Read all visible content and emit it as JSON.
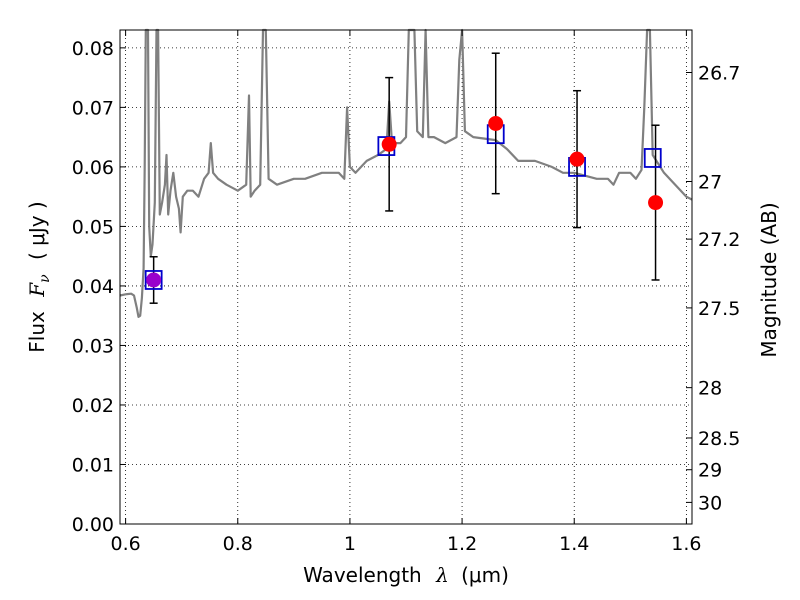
{
  "chart_data": {
    "type": "scatter",
    "xlabel": {
      "text": "Wavelength",
      "symbol": "λ",
      "unit": "(μm)"
    },
    "ylabel": {
      "text": "Flux",
      "symbol": "F",
      "subscript": "ν",
      "unit": "( μJy )"
    },
    "y2label": "Magnitude (AB)",
    "xlim": [
      0.59,
      1.61
    ],
    "ylim": [
      0.0,
      0.083
    ],
    "x_ticks": [
      {
        "value": 0.6,
        "label": "0.6"
      },
      {
        "value": 0.8,
        "label": "0.8"
      },
      {
        "value": 1.0,
        "label": "1"
      },
      {
        "value": 1.2,
        "label": "1.2"
      },
      {
        "value": 1.4,
        "label": "1.4"
      },
      {
        "value": 1.6,
        "label": "1.6"
      }
    ],
    "y_ticks": [
      {
        "value": 0.0,
        "label": "0.00"
      },
      {
        "value": 0.01,
        "label": "0.01"
      },
      {
        "value": 0.02,
        "label": "0.02"
      },
      {
        "value": 0.03,
        "label": "0.03"
      },
      {
        "value": 0.04,
        "label": "0.04"
      },
      {
        "value": 0.05,
        "label": "0.05"
      },
      {
        "value": 0.06,
        "label": "0.06"
      },
      {
        "value": 0.07,
        "label": "0.07"
      },
      {
        "value": 0.08,
        "label": "0.08"
      }
    ],
    "y2_ticks": [
      {
        "mag": 26.7,
        "label": "26.7"
      },
      {
        "mag": 27.0,
        "label": "27"
      },
      {
        "mag": 27.2,
        "label": "27.2"
      },
      {
        "mag": 27.5,
        "label": "27.5"
      },
      {
        "mag": 28.0,
        "label": "28"
      },
      {
        "mag": 28.5,
        "label": "28.5"
      },
      {
        "mag": 29.0,
        "label": "29"
      },
      {
        "mag": 30.0,
        "label": "30"
      }
    ],
    "grid": true,
    "grid_style": "dotted",
    "series": [
      {
        "kind": "line",
        "color": "#808080",
        "points": [
          [
            0.59,
            0.0384
          ],
          [
            0.6,
            0.0386
          ],
          [
            0.61,
            0.0387
          ],
          [
            0.615,
            0.0384
          ],
          [
            0.62,
            0.0363
          ],
          [
            0.623,
            0.0348
          ],
          [
            0.626,
            0.035
          ],
          [
            0.629,
            0.038
          ],
          [
            0.632,
            0.043
          ],
          [
            0.634,
            0.06
          ],
          [
            0.636,
            0.083
          ],
          [
            0.64,
            0.083
          ],
          [
            0.642,
            0.05
          ],
          [
            0.645,
            0.045
          ],
          [
            0.648,
            0.047
          ],
          [
            0.652,
            0.054
          ],
          [
            0.655,
            0.083
          ],
          [
            0.658,
            0.083
          ],
          [
            0.661,
            0.052
          ],
          [
            0.665,
            0.054
          ],
          [
            0.67,
            0.057
          ],
          [
            0.673,
            0.062
          ],
          [
            0.676,
            0.052
          ],
          [
            0.68,
            0.056
          ],
          [
            0.685,
            0.059
          ],
          [
            0.69,
            0.055
          ],
          [
            0.695,
            0.053
          ],
          [
            0.698,
            0.049
          ],
          [
            0.702,
            0.055
          ],
          [
            0.71,
            0.056
          ],
          [
            0.72,
            0.056
          ],
          [
            0.73,
            0.055
          ],
          [
            0.74,
            0.058
          ],
          [
            0.748,
            0.059
          ],
          [
            0.752,
            0.064
          ],
          [
            0.756,
            0.059
          ],
          [
            0.765,
            0.058
          ],
          [
            0.78,
            0.057
          ],
          [
            0.8,
            0.056
          ],
          [
            0.815,
            0.057
          ],
          [
            0.82,
            0.072
          ],
          [
            0.823,
            0.055
          ],
          [
            0.83,
            0.056
          ],
          [
            0.84,
            0.057
          ],
          [
            0.845,
            0.083
          ],
          [
            0.85,
            0.083
          ],
          [
            0.855,
            0.058
          ],
          [
            0.87,
            0.057
          ],
          [
            0.9,
            0.058
          ],
          [
            0.92,
            0.058
          ],
          [
            0.95,
            0.059
          ],
          [
            0.98,
            0.059
          ],
          [
            0.99,
            0.058
          ],
          [
            0.995,
            0.07
          ],
          [
            1.0,
            0.06
          ],
          [
            1.01,
            0.059
          ],
          [
            1.03,
            0.061
          ],
          [
            1.05,
            0.062
          ],
          [
            1.065,
            0.063
          ],
          [
            1.07,
            0.071
          ],
          [
            1.075,
            0.064
          ],
          [
            1.09,
            0.064
          ],
          [
            1.1,
            0.065
          ],
          [
            1.105,
            0.083
          ],
          [
            1.115,
            0.083
          ],
          [
            1.12,
            0.066
          ],
          [
            1.13,
            0.065
          ],
          [
            1.135,
            0.083
          ],
          [
            1.14,
            0.065
          ],
          [
            1.15,
            0.065
          ],
          [
            1.17,
            0.064
          ],
          [
            1.19,
            0.065
          ],
          [
            1.195,
            0.078
          ],
          [
            1.2,
            0.083
          ],
          [
            1.205,
            0.066
          ],
          [
            1.22,
            0.065
          ],
          [
            1.26,
            0.0645
          ],
          [
            1.28,
            0.063
          ],
          [
            1.3,
            0.061
          ],
          [
            1.33,
            0.061
          ],
          [
            1.36,
            0.06
          ],
          [
            1.38,
            0.059
          ],
          [
            1.4,
            0.059
          ],
          [
            1.42,
            0.0585
          ],
          [
            1.44,
            0.058
          ],
          [
            1.46,
            0.058
          ],
          [
            1.47,
            0.057
          ],
          [
            1.48,
            0.059
          ],
          [
            1.5,
            0.059
          ],
          [
            1.51,
            0.058
          ],
          [
            1.52,
            0.0595
          ],
          [
            1.525,
            0.07
          ],
          [
            1.53,
            0.083
          ],
          [
            1.535,
            0.083
          ],
          [
            1.54,
            0.062
          ],
          [
            1.56,
            0.059
          ],
          [
            1.58,
            0.057
          ],
          [
            1.6,
            0.055
          ],
          [
            1.61,
            0.0545
          ]
        ]
      },
      {
        "kind": "open-square",
        "color": "#0000cc",
        "points": [
          [
            0.65,
            0.041
          ],
          [
            1.065,
            0.0635
          ],
          [
            1.26,
            0.0655
          ],
          [
            1.405,
            0.06
          ],
          [
            1.54,
            0.0615
          ]
        ]
      },
      {
        "kind": "filled-circle-errorbar",
        "color": "#ff0000",
        "points": [
          {
            "x": 0.65,
            "y": 0.041,
            "yerr": 0.0039,
            "color": "#9900cc"
          },
          {
            "x": 1.07,
            "y": 0.0638,
            "yerr": 0.0112
          },
          {
            "x": 1.26,
            "y": 0.0673,
            "yerr": 0.0118
          },
          {
            "x": 1.405,
            "y": 0.0613,
            "yerr": 0.0115
          },
          {
            "x": 1.545,
            "y": 0.054,
            "yerr": 0.013
          }
        ]
      }
    ]
  }
}
